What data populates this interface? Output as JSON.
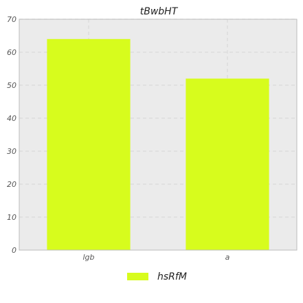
{
  "chart_data": {
    "type": "bar",
    "title": "tBwbHT",
    "categories": [
      "lgb",
      "a"
    ],
    "series": [
      {
        "name": "hsRfM",
        "values": [
          64,
          52
        ],
        "color": "#d7fc1d"
      }
    ],
    "ylim": [
      0,
      70
    ],
    "yticks": [
      0,
      10,
      20,
      30,
      40,
      50,
      60,
      70
    ],
    "xlabel": "",
    "ylabel": "",
    "grid": true,
    "legend_position": "bottom-center",
    "plot_background": "#ebebeb",
    "grid_color": "#d9d9d9"
  }
}
